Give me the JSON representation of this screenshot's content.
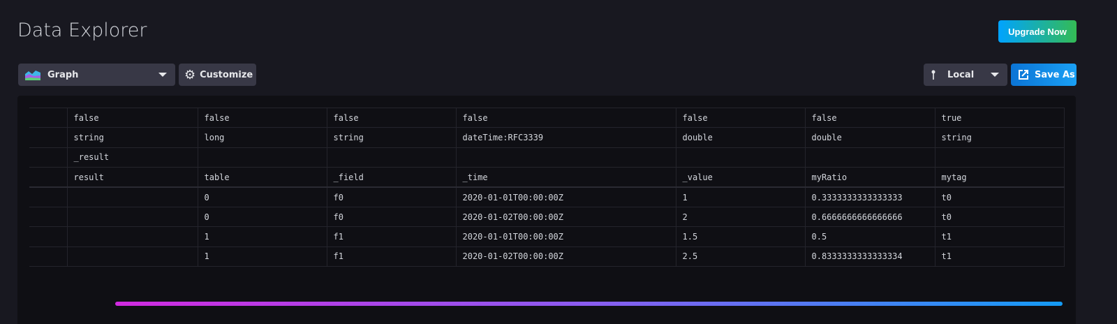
{
  "page": {
    "title": "Data Explorer",
    "upgrade_label": "Upgrade Now"
  },
  "toolbar": {
    "vis_type": "Graph",
    "customize_label": "Customize",
    "timezone": "Local",
    "save_as_label": "Save As"
  },
  "table": {
    "annotations": [
      [
        "",
        "false",
        "false",
        "false",
        "false",
        "false",
        "false",
        "true"
      ],
      [
        "",
        "string",
        "long",
        "string",
        "dateTime:RFC3339",
        "double",
        "double",
        "string"
      ],
      [
        "",
        "_result",
        "",
        "",
        "",
        "",
        "",
        ""
      ]
    ],
    "columns": [
      "",
      "result",
      "table",
      "_field",
      "_time",
      "_value",
      "myRatio",
      "mytag"
    ],
    "rows": [
      [
        "",
        "",
        "0",
        "f0",
        "2020-01-01T00:00:00Z",
        "1",
        "0.3333333333333333",
        "t0"
      ],
      [
        "",
        "",
        "0",
        "f0",
        "2020-01-02T00:00:00Z",
        "2",
        "0.6666666666666666",
        "t0"
      ],
      [
        "",
        "",
        "1",
        "f1",
        "2020-01-01T00:00:00Z",
        "1.5",
        "0.5",
        "t1"
      ],
      [
        "",
        "",
        "1",
        "f1",
        "2020-01-02T00:00:00Z",
        "2.5",
        "0.8333333333333334",
        "t1"
      ]
    ]
  }
}
